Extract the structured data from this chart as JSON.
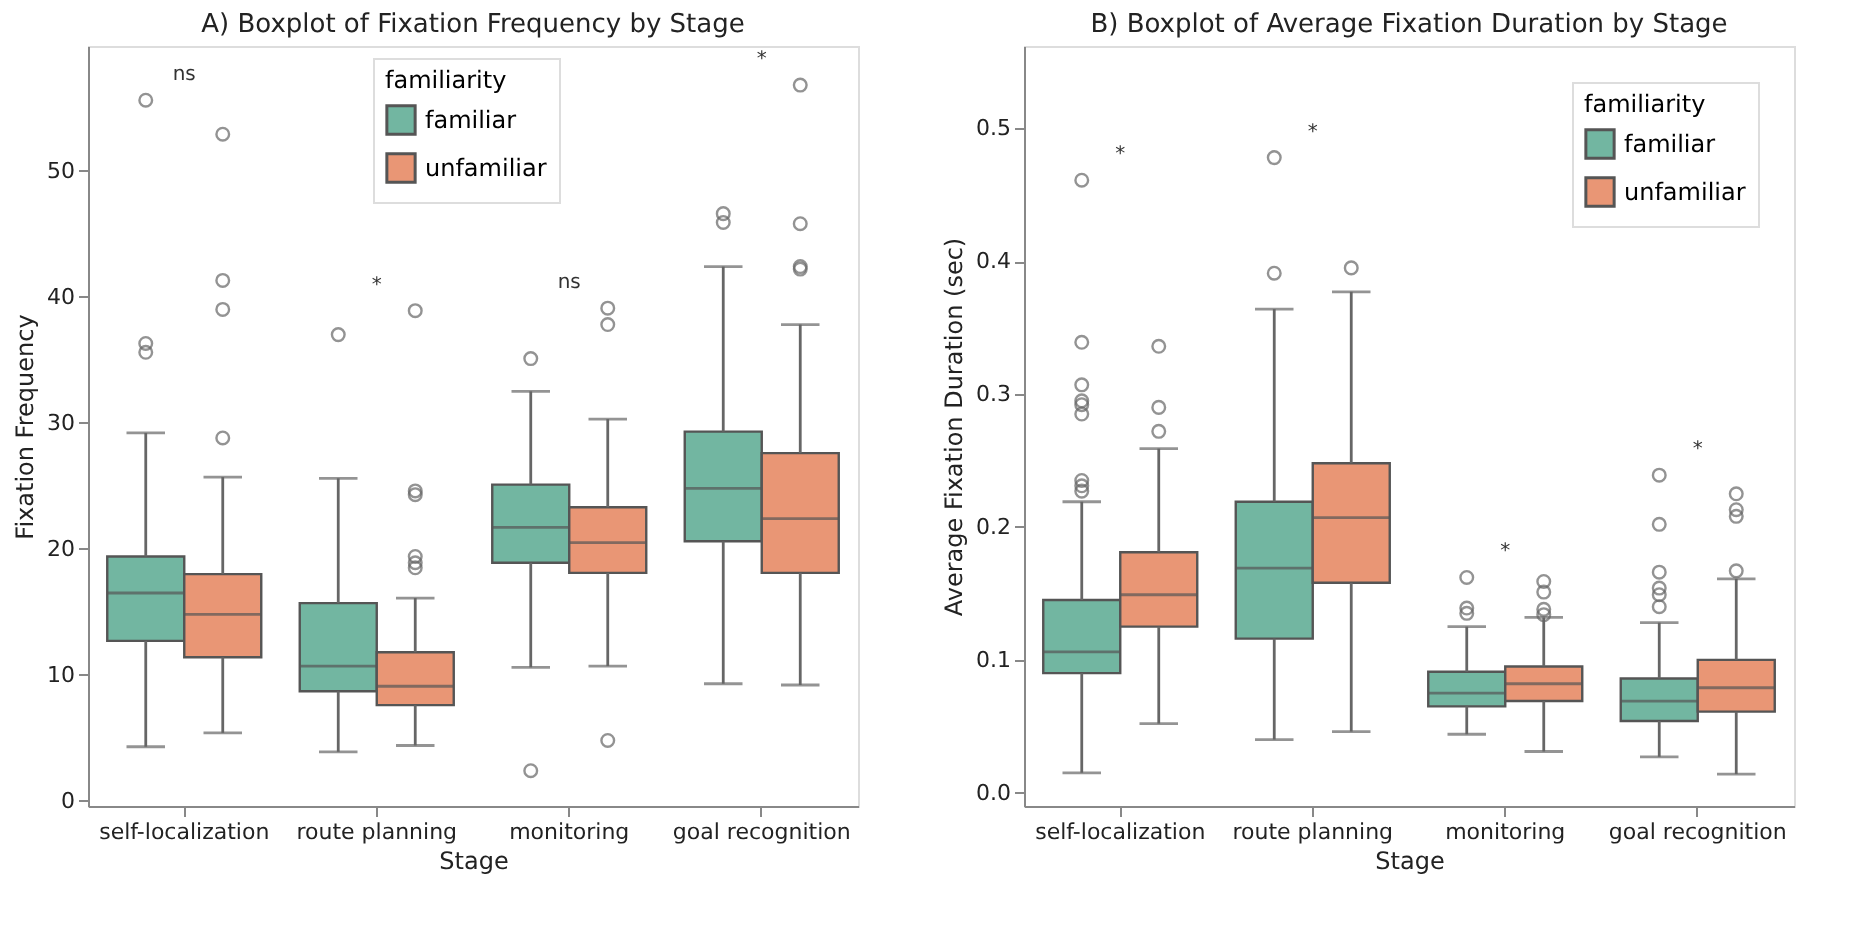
{
  "chart_data": [
    {
      "type": "box",
      "title": "A) Boxplot of Fixation Frequency by Stage",
      "xlabel": "Stage",
      "ylabel": "Fixation Frequency",
      "legend_title": "familiarity",
      "legend": "top",
      "grid": false,
      "categories": [
        "self-localization",
        "route planning",
        "monitoring",
        "goal recognition"
      ],
      "ylim": [
        -0.4,
        59.9
      ],
      "yticks": [
        0,
        10,
        20,
        30,
        40,
        50
      ],
      "series": [
        {
          "name": "familiar",
          "color": "#72b6a1",
          "boxes": [
            {
              "low": 4.3,
              "q1": 12.7,
              "median": 16.5,
              "q3": 19.4,
              "high": 29.2,
              "outliers": [
                55.6,
                36.3,
                35.6
              ]
            },
            {
              "low": 3.9,
              "q1": 8.7,
              "median": 10.7,
              "q3": 15.7,
              "high": 25.6,
              "outliers": [
                37.0
              ]
            },
            {
              "low": 10.6,
              "q1": 18.9,
              "median": 21.7,
              "q3": 25.1,
              "high": 32.5,
              "outliers": [
                35.1,
                2.4
              ]
            },
            {
              "low": 9.3,
              "q1": 20.6,
              "median": 24.8,
              "q3": 29.3,
              "high": 42.4,
              "outliers": [
                46.6,
                45.9
              ]
            }
          ]
        },
        {
          "name": "unfamiliar",
          "color": "#e99675",
          "boxes": [
            {
              "low": 5.4,
              "q1": 11.4,
              "median": 14.8,
              "q3": 18.0,
              "high": 25.7,
              "outliers": [
                52.9,
                41.3,
                39.0,
                28.8
              ]
            },
            {
              "low": 4.4,
              "q1": 7.6,
              "median": 9.1,
              "q3": 11.8,
              "high": 16.1,
              "outliers": [
                38.9,
                24.6,
                24.3,
                19.4,
                18.9,
                18.5
              ]
            },
            {
              "low": 10.7,
              "q1": 18.1,
              "median": 20.5,
              "q3": 23.3,
              "high": 30.3,
              "outliers": [
                39.1,
                37.8,
                4.8
              ]
            },
            {
              "low": 9.2,
              "q1": 18.1,
              "median": 22.4,
              "q3": 27.6,
              "high": 37.8,
              "outliers": [
                56.8,
                45.8,
                42.4,
                42.2
              ]
            }
          ]
        }
      ],
      "annotations": [
        "ns",
        "*",
        "ns",
        "*"
      ]
    },
    {
      "type": "box",
      "title": "B) Boxplot of Average Fixation Duration by Stage",
      "xlabel": "Stage",
      "ylabel": "Average Fixation Duration  (sec)",
      "legend_title": "familiarity",
      "legend": "top right",
      "grid": false,
      "categories": [
        "self-localization",
        "route planning",
        "monitoring",
        "goal recognition"
      ],
      "ylim": [
        -0.01,
        0.562
      ],
      "yticks": [
        {
          "value": 0,
          "label": "0.0"
        },
        0.1,
        0.2,
        0.3,
        0.4,
        0.5
      ],
      "series": [
        {
          "name": "familiar",
          "color": "#72b6a1",
          "boxes": [
            {
              "low": 0.015,
              "q1": 0.09,
              "median": 0.106,
              "q3": 0.145,
              "high": 0.219,
              "outliers": [
                0.461,
                0.339,
                0.307,
                0.295,
                0.292,
                0.285,
                0.235,
                0.231,
                0.227
              ]
            },
            {
              "low": 0.04,
              "q1": 0.116,
              "median": 0.169,
              "q3": 0.219,
              "high": 0.364,
              "outliers": [
                0.478,
                0.391
              ]
            },
            {
              "low": 0.044,
              "q1": 0.065,
              "median": 0.075,
              "q3": 0.091,
              "high": 0.125,
              "outliers": [
                0.162,
                0.139,
                0.135
              ]
            },
            {
              "low": 0.027,
              "q1": 0.054,
              "median": 0.069,
              "q3": 0.086,
              "high": 0.128,
              "outliers": [
                0.239,
                0.202,
                0.166,
                0.154,
                0.149,
                0.14
              ]
            }
          ]
        },
        {
          "name": "unfamiliar",
          "color": "#e99675",
          "boxes": [
            {
              "low": 0.052,
              "q1": 0.125,
              "median": 0.149,
              "q3": 0.181,
              "high": 0.259,
              "outliers": [
                0.336,
                0.29,
                0.272
              ]
            },
            {
              "low": 0.046,
              "q1": 0.158,
              "median": 0.207,
              "q3": 0.248,
              "high": 0.377,
              "outliers": [
                0.395
              ]
            },
            {
              "low": 0.031,
              "q1": 0.069,
              "median": 0.082,
              "q3": 0.095,
              "high": 0.132,
              "outliers": [
                0.159,
                0.151,
                0.138,
                0.134
              ]
            },
            {
              "low": 0.014,
              "q1": 0.061,
              "median": 0.079,
              "q3": 0.1,
              "high": 0.161,
              "outliers": [
                0.225,
                0.213,
                0.208,
                0.167
              ]
            }
          ]
        }
      ],
      "annotations": [
        "*",
        "*",
        "*",
        "*"
      ]
    }
  ]
}
